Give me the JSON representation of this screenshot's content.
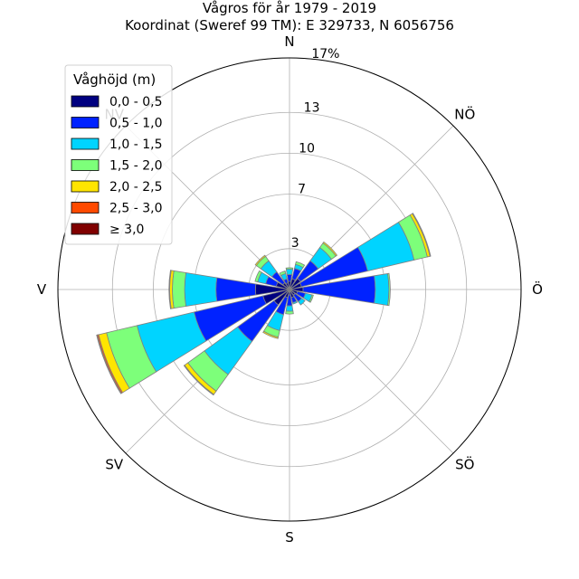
{
  "title": "Vågros för år 1979 - 2019",
  "subtitle": "Koordinat (Sweref 99 TM): E 329733, N 6056756",
  "chart_data": {
    "type": "wind-rose",
    "directions": [
      "N",
      "NÖ",
      "Ö",
      "SÖ",
      "S",
      "SV",
      "V",
      "NV"
    ],
    "sector_angles_deg": [
      0,
      22.5,
      45,
      67.5,
      90,
      112.5,
      135,
      157.5,
      180,
      202.5,
      225,
      247.5,
      270,
      292.5,
      315,
      337.5
    ],
    "radial_ticks": [
      3,
      7,
      10,
      13,
      17
    ],
    "radial_unit": "%",
    "rmax": 17,
    "legend_title": "Våghöjd (m)",
    "legend_placement": "top-left",
    "series": [
      {
        "name": "0,0 - 0,5",
        "color": "#000080",
        "values": [
          0.6,
          0.8,
          1.0,
          0.9,
          1.0,
          0.6,
          0.5,
          0.6,
          0.4,
          0.6,
          1.4,
          2.0,
          2.5,
          1.0,
          0.6,
          0.5
        ]
      },
      {
        "name": "0,5 - 1,0",
        "color": "#0022ff",
        "values": [
          0.5,
          0.8,
          1.6,
          5.0,
          5.3,
          0.6,
          0.6,
          0.4,
          0.8,
          1.3,
          3.3,
          5.2,
          2.9,
          0.8,
          1.0,
          0.3
        ]
      },
      {
        "name": "1,0 - 1,5",
        "color": "#00d4ff",
        "values": [
          0.4,
          0.3,
          1.2,
          3.5,
          1.0,
          0.5,
          0.3,
          0.1,
          0.4,
          1.2,
          3.0,
          4.3,
          2.3,
          0.6,
          1.0,
          0.4
        ]
      },
      {
        "name": "1,5 - 2,0",
        "color": "#7dff7a",
        "values": [
          0.1,
          0.2,
          0.4,
          1.0,
          0.1,
          0.1,
          0.0,
          0.0,
          0.2,
          0.5,
          1.5,
          2.3,
          0.9,
          0.2,
          0.4,
          0.2
        ]
      },
      {
        "name": "2,0 - 2,5",
        "color": "#ffe500",
        "values": [
          0.0,
          0.0,
          0.1,
          0.2,
          0.0,
          0.0,
          0.0,
          0.0,
          0.0,
          0.1,
          0.3,
          0.6,
          0.2,
          0.0,
          0.1,
          0.0
        ]
      },
      {
        "name": "2,5 - 3,0",
        "color": "#ff4a00",
        "values": [
          0.0,
          0.0,
          0.0,
          0.05,
          0.0,
          0.0,
          0.0,
          0.0,
          0.0,
          0.0,
          0.05,
          0.1,
          0.05,
          0.0,
          0.0,
          0.0
        ]
      },
      {
        "name": "≥ 3,0",
        "color": "#800000",
        "values": [
          0.0,
          0.0,
          0.0,
          0.0,
          0.0,
          0.0,
          0.0,
          0.0,
          0.0,
          0.0,
          0.0,
          0.05,
          0.0,
          0.0,
          0.0,
          0.0
        ]
      }
    ]
  }
}
